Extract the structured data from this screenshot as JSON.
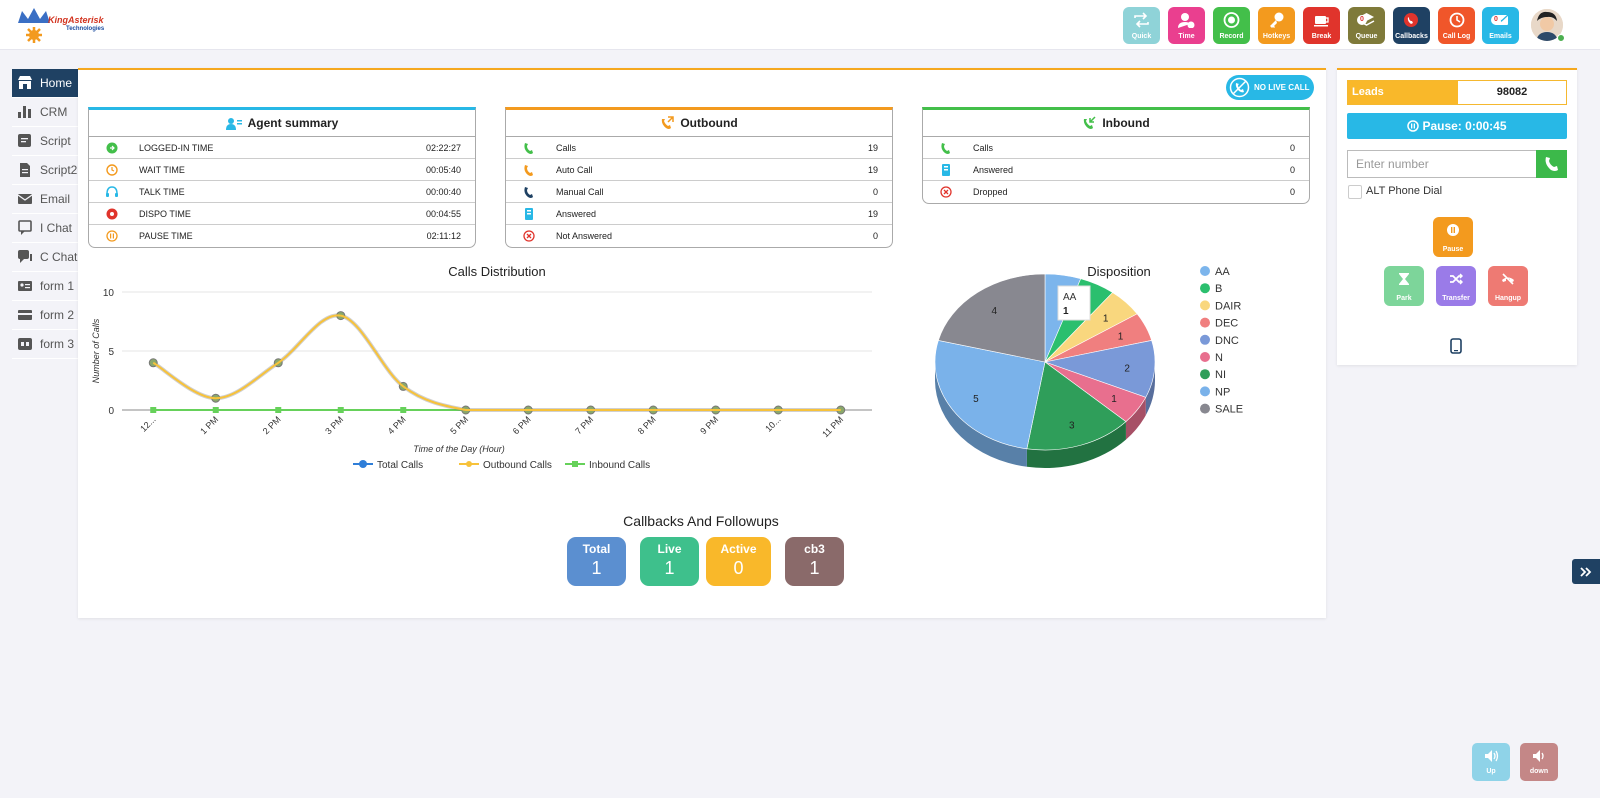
{
  "brand": {
    "name": "KingAsterisk",
    "sub": "Technologies"
  },
  "toolbar": [
    {
      "id": "quick",
      "label": "Quick",
      "color": "#8fd3d8",
      "icon": "repeat-icon"
    },
    {
      "id": "time",
      "label": "Time",
      "color": "#ea3f8f",
      "icon": "user-clock-icon"
    },
    {
      "id": "record",
      "label": "Record",
      "color": "#43bf4a",
      "icon": "record-icon"
    },
    {
      "id": "hotkeys",
      "label": "Hotkeys",
      "color": "#f39a1e",
      "icon": "key-icon"
    },
    {
      "id": "break",
      "label": "Break",
      "color": "#e0342c",
      "icon": "coffee-icon"
    },
    {
      "id": "queue",
      "label": "Queue",
      "color": "#7f7a3a",
      "icon": "stack-icon",
      "count": "0"
    },
    {
      "id": "callbacks",
      "label": "Callbacks",
      "color": "#1f4163",
      "icon": "callback-icon"
    },
    {
      "id": "calllog",
      "label": "Call Log",
      "color": "#f0562a",
      "icon": "history-icon"
    },
    {
      "id": "emails",
      "label": "Emails",
      "color": "#28b8e6",
      "icon": "mail-icon",
      "count": "0"
    }
  ],
  "sidebar": [
    {
      "label": "Home",
      "icon": "store-icon"
    },
    {
      "label": "CRM",
      "icon": "bar-chart-icon"
    },
    {
      "label": "Script",
      "icon": "script-icon"
    },
    {
      "label": "Script2",
      "icon": "document-icon"
    },
    {
      "label": "Email",
      "icon": "envelope-icon"
    },
    {
      "label": "I Chat",
      "icon": "chat-icon"
    },
    {
      "label": "C Chat",
      "icon": "comments-icon"
    },
    {
      "label": "form 1",
      "icon": "id-card-icon"
    },
    {
      "label": "form 2",
      "icon": "card-icon"
    },
    {
      "label": "form 3",
      "icon": "form-icon"
    }
  ],
  "no_live_call": "NO LIVE CALL",
  "agent_summary": {
    "title": "Agent summary",
    "rows": [
      {
        "label": "LOGGED-IN TIME",
        "value": "02:22:27",
        "icon_color": "#43bf4a"
      },
      {
        "label": "WAIT TIME",
        "value": "00:05:40",
        "icon_color": "#f39a1e"
      },
      {
        "label": "TALK TIME",
        "value": "00:00:40",
        "icon_color": "#28b8e6"
      },
      {
        "label": "DISPO TIME",
        "value": "00:04:55",
        "icon_color": "#e0342c"
      },
      {
        "label": "PAUSE TIME",
        "value": "02:11:12",
        "icon_color": "#f39a1e"
      }
    ]
  },
  "outbound": {
    "title": "Outbound",
    "rows": [
      {
        "label": "Calls",
        "value": "19",
        "icon_color": "#43bf4a"
      },
      {
        "label": "Auto Call",
        "value": "19",
        "icon_color": "#f39a1e"
      },
      {
        "label": "Manual Call",
        "value": "0",
        "icon_color": "#1f4163"
      },
      {
        "label": "Answered",
        "value": "19",
        "icon_color": "#28b8e6"
      },
      {
        "label": "Not Answered",
        "value": "0",
        "icon_color": "#e0342c"
      }
    ]
  },
  "inbound": {
    "title": "Inbound",
    "rows": [
      {
        "label": "Calls",
        "value": "0",
        "icon_color": "#43bf4a"
      },
      {
        "label": "Answered",
        "value": "0",
        "icon_color": "#28b8e6"
      },
      {
        "label": "Dropped",
        "value": "0",
        "icon_color": "#e0342c"
      }
    ]
  },
  "chart_data": [
    {
      "type": "line",
      "title": "Calls Distribution",
      "xlabel": "Time of the Day (Hour)",
      "ylabel": "Number of Calls",
      "categories": [
        "12...",
        "1 PM",
        "2 PM",
        "3 PM",
        "4 PM",
        "5 PM",
        "6 PM",
        "7 PM",
        "8 PM",
        "9 PM",
        "10...",
        "11 PM"
      ],
      "ylim": [
        0,
        10
      ],
      "yticks": [
        0,
        5,
        10
      ],
      "series": [
        {
          "name": "Total Calls",
          "color": "#2f7ed8",
          "values": [
            4,
            1,
            4,
            8,
            2,
            0,
            0,
            0,
            0,
            0,
            0,
            0
          ]
        },
        {
          "name": "Outbound Calls",
          "color": "#f7c23a",
          "values": [
            4,
            1,
            4,
            8,
            2,
            0,
            0,
            0,
            0,
            0,
            0,
            0
          ]
        },
        {
          "name": "Inbound Calls",
          "color": "#66d15a",
          "values": [
            0,
            0,
            0,
            0,
            0,
            0,
            0,
            0,
            0,
            0,
            0,
            0
          ]
        }
      ],
      "legend": "bottom",
      "grid": true
    },
    {
      "type": "pie",
      "title": "Disposition",
      "slices": [
        {
          "label": "AA",
          "value": 1,
          "color": "#7cb5ec"
        },
        {
          "label": "B",
          "value": 1,
          "color": "#2bbf6e"
        },
        {
          "label": "DAIR",
          "value": 1,
          "color": "#f9d77e"
        },
        {
          "label": "DEC",
          "value": 1,
          "color": "#f07f7f"
        },
        {
          "label": "DNC",
          "value": 2,
          "color": "#7a99d8"
        },
        {
          "label": "N",
          "value": 1,
          "color": "#e86f8e"
        },
        {
          "label": "NI",
          "value": 3,
          "color": "#2f9e5a"
        },
        {
          "label": "NP",
          "value": 5,
          "color": "#7ab2ea"
        },
        {
          "label": "SALE",
          "value": 4,
          "color": "#888890"
        }
      ],
      "tooltip": {
        "label": "AA",
        "value": "1"
      },
      "legend": "right"
    }
  ],
  "callbacks": {
    "title": "Callbacks And Followups",
    "items": [
      {
        "label": "Total",
        "value": "1",
        "color": "#5b8fd0"
      },
      {
        "label": "Live",
        "value": "1",
        "color": "#3ec08c"
      },
      {
        "label": "Active",
        "value": "0",
        "color": "#f9b82a"
      },
      {
        "label": "cb3",
        "value": "1",
        "color": "#8a6a6a"
      }
    ]
  },
  "right": {
    "leads_label": "Leads",
    "leads_value": "98082",
    "pause_label": "Pause:",
    "pause_time": "0:00:45",
    "number_placeholder": "Enter number",
    "alt_dial": "ALT Phone Dial",
    "pause_button": "Pause",
    "park": "Park",
    "transfer": "Transfer",
    "hangup": "Hangup"
  },
  "volume": {
    "up": "Up",
    "down": "down"
  }
}
